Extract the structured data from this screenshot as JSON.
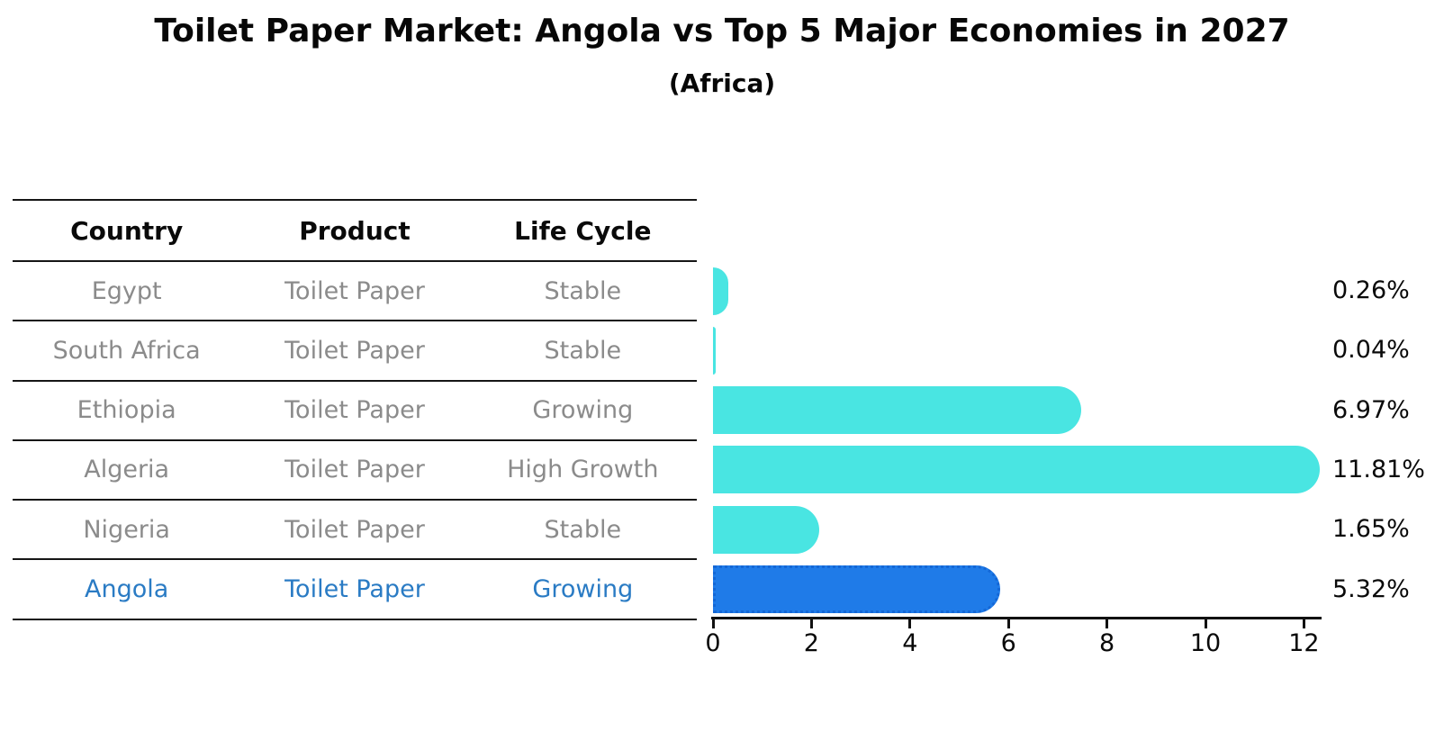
{
  "title": "Toilet Paper Market: Angola vs Top 5 Major Economies in 2027",
  "subtitle": "(Africa)",
  "table": {
    "headers": [
      "Country",
      "Product",
      "Life Cycle"
    ],
    "rows": [
      {
        "country": "Egypt",
        "product": "Toilet Paper",
        "life_cycle": "Stable"
      },
      {
        "country": "South Africa",
        "product": "Toilet Paper",
        "life_cycle": "Stable"
      },
      {
        "country": "Ethiopia",
        "product": "Toilet Paper",
        "life_cycle": "Growing"
      },
      {
        "country": "Algeria",
        "product": "Toilet Paper",
        "life_cycle": "High Growth"
      },
      {
        "country": "Nigeria",
        "product": "Toilet Paper",
        "life_cycle": "Stable"
      },
      {
        "country": "Angola",
        "product": "Toilet Paper",
        "life_cycle": "Growing"
      }
    ],
    "highlight_row": "Angola"
  },
  "chart_data": {
    "type": "bar",
    "orientation": "horizontal",
    "title": "Toilet Paper Market: Angola vs Top 5 Major Economies in 2027",
    "subtitle": "(Africa)",
    "categories": [
      "Egypt",
      "South Africa",
      "Ethiopia",
      "Algeria",
      "Nigeria",
      "Angola"
    ],
    "values": [
      0.26,
      0.04,
      6.97,
      11.81,
      1.65,
      5.32
    ],
    "value_labels": [
      "0.26%",
      "0.04%",
      "6.97%",
      "11.81%",
      "1.65%",
      "5.32%"
    ],
    "x_ticks": [
      0,
      2,
      4,
      6,
      8,
      10,
      12
    ],
    "xlim": [
      0,
      12.4
    ],
    "grid": false,
    "legend": false,
    "highlight_index": 5,
    "colors": {
      "bar": "#49E5E2",
      "highlight_bar": "#1F7BE8",
      "highlight_border": "#1467D6",
      "highlight_text": "#2A7BC4",
      "row_text": "#8B8B8B",
      "axis": "#111111"
    }
  }
}
